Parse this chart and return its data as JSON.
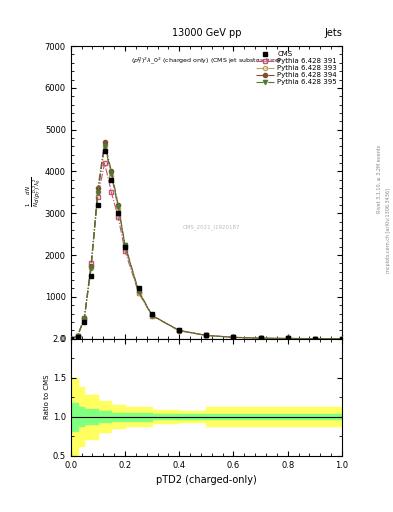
{
  "title_top": "13000 GeV pp",
  "title_right": "Jets",
  "plot_title": "$(p_T^D)^2\\lambda\\_0^2$ (charged only) (CMS jet substructure)",
  "xlabel": "pTD2 (charged-only)",
  "ylabel_ratio": "Ratio to CMS",
  "right_label": "mcplots.cern.ch [arXiv:1306.3436]",
  "right_label2": "Rivet 3.1.10, ≥ 3.2M events",
  "watermark": "CMS_2021_I1920187",
  "xlim": [
    0.0,
    1.0
  ],
  "ylim_main": [
    0,
    7000
  ],
  "ylim_ratio": [
    0.5,
    2.0
  ],
  "yticks_main": [
    0,
    1000,
    2000,
    3000,
    4000,
    5000,
    6000,
    7000
  ],
  "yticks_ratio": [
    0.5,
    1.0,
    1.5,
    2.0
  ],
  "cms_x": [
    0.0,
    0.025,
    0.05,
    0.075,
    0.1,
    0.125,
    0.15,
    0.175,
    0.2,
    0.25,
    0.3,
    0.4,
    0.5,
    0.6,
    0.7,
    0.8,
    0.9,
    1.0
  ],
  "cms_y": [
    0,
    50,
    400,
    1500,
    3200,
    4500,
    3800,
    3000,
    2200,
    1200,
    600,
    200,
    80,
    40,
    15,
    8,
    3,
    1
  ],
  "p391_x": [
    0.0,
    0.025,
    0.05,
    0.075,
    0.1,
    0.125,
    0.15,
    0.175,
    0.2,
    0.25,
    0.3,
    0.4,
    0.5,
    0.6,
    0.7,
    0.8,
    0.9,
    1.0
  ],
  "p391_y": [
    0,
    60,
    500,
    1800,
    3400,
    4200,
    3500,
    2900,
    2100,
    1100,
    550,
    200,
    80,
    35,
    12,
    5,
    2,
    0.5
  ],
  "p393_x": [
    0.0,
    0.025,
    0.05,
    0.075,
    0.1,
    0.125,
    0.15,
    0.175,
    0.2,
    0.25,
    0.3,
    0.4,
    0.5,
    0.6,
    0.7,
    0.8,
    0.9,
    1.0
  ],
  "p393_y": [
    0,
    55,
    480,
    1700,
    3500,
    4600,
    3900,
    3100,
    2200,
    1100,
    550,
    190,
    75,
    30,
    10,
    4,
    1.5,
    0.4
  ],
  "p394_x": [
    0.0,
    0.025,
    0.05,
    0.075,
    0.1,
    0.125,
    0.15,
    0.175,
    0.2,
    0.25,
    0.3,
    0.4,
    0.5,
    0.6,
    0.7,
    0.8,
    0.9,
    1.0
  ],
  "p394_y": [
    0,
    60,
    490,
    1750,
    3600,
    4700,
    4000,
    3200,
    2250,
    1150,
    560,
    195,
    78,
    32,
    11,
    4.5,
    1.8,
    0.5
  ],
  "p395_x": [
    0.0,
    0.025,
    0.05,
    0.075,
    0.1,
    0.125,
    0.15,
    0.175,
    0.2,
    0.25,
    0.3,
    0.4,
    0.5,
    0.6,
    0.7,
    0.8,
    0.9,
    1.0
  ],
  "p395_y": [
    0,
    58,
    470,
    1680,
    3480,
    4620,
    3950,
    3150,
    2230,
    1130,
    545,
    192,
    76,
    31,
    10.5,
    4.2,
    1.6,
    0.4
  ],
  "color_391": "#c8507a",
  "color_393": "#b8a060",
  "color_394": "#7a5030",
  "color_395": "#507830",
  "color_cms": "#000000",
  "ratio_green_band_x": [
    0.0,
    0.025,
    0.05,
    0.1,
    0.15,
    0.2,
    0.3,
    0.4,
    0.5,
    0.6,
    0.7,
    0.8,
    0.9,
    1.0
  ],
  "ratio_green_lo": [
    0.82,
    0.88,
    0.9,
    0.93,
    0.95,
    0.95,
    0.97,
    0.97,
    0.97,
    0.97,
    0.97,
    0.97,
    0.97,
    0.97
  ],
  "ratio_green_hi": [
    1.18,
    1.12,
    1.1,
    1.07,
    1.05,
    1.05,
    1.03,
    1.03,
    1.03,
    1.03,
    1.03,
    1.03,
    1.03,
    1.03
  ],
  "ratio_yellow_x": [
    0.0,
    0.025,
    0.05,
    0.1,
    0.15,
    0.2,
    0.3,
    0.4,
    0.5,
    0.6,
    0.7,
    0.8,
    0.9,
    1.0
  ],
  "ratio_yellow_lo": [
    0.5,
    0.62,
    0.72,
    0.8,
    0.85,
    0.88,
    0.92,
    0.93,
    0.88,
    0.88,
    0.88,
    0.88,
    0.88,
    0.88
  ],
  "ratio_yellow_hi": [
    1.5,
    1.38,
    1.28,
    1.2,
    1.15,
    1.12,
    1.08,
    1.07,
    1.12,
    1.12,
    1.12,
    1.12,
    1.12,
    1.12
  ]
}
